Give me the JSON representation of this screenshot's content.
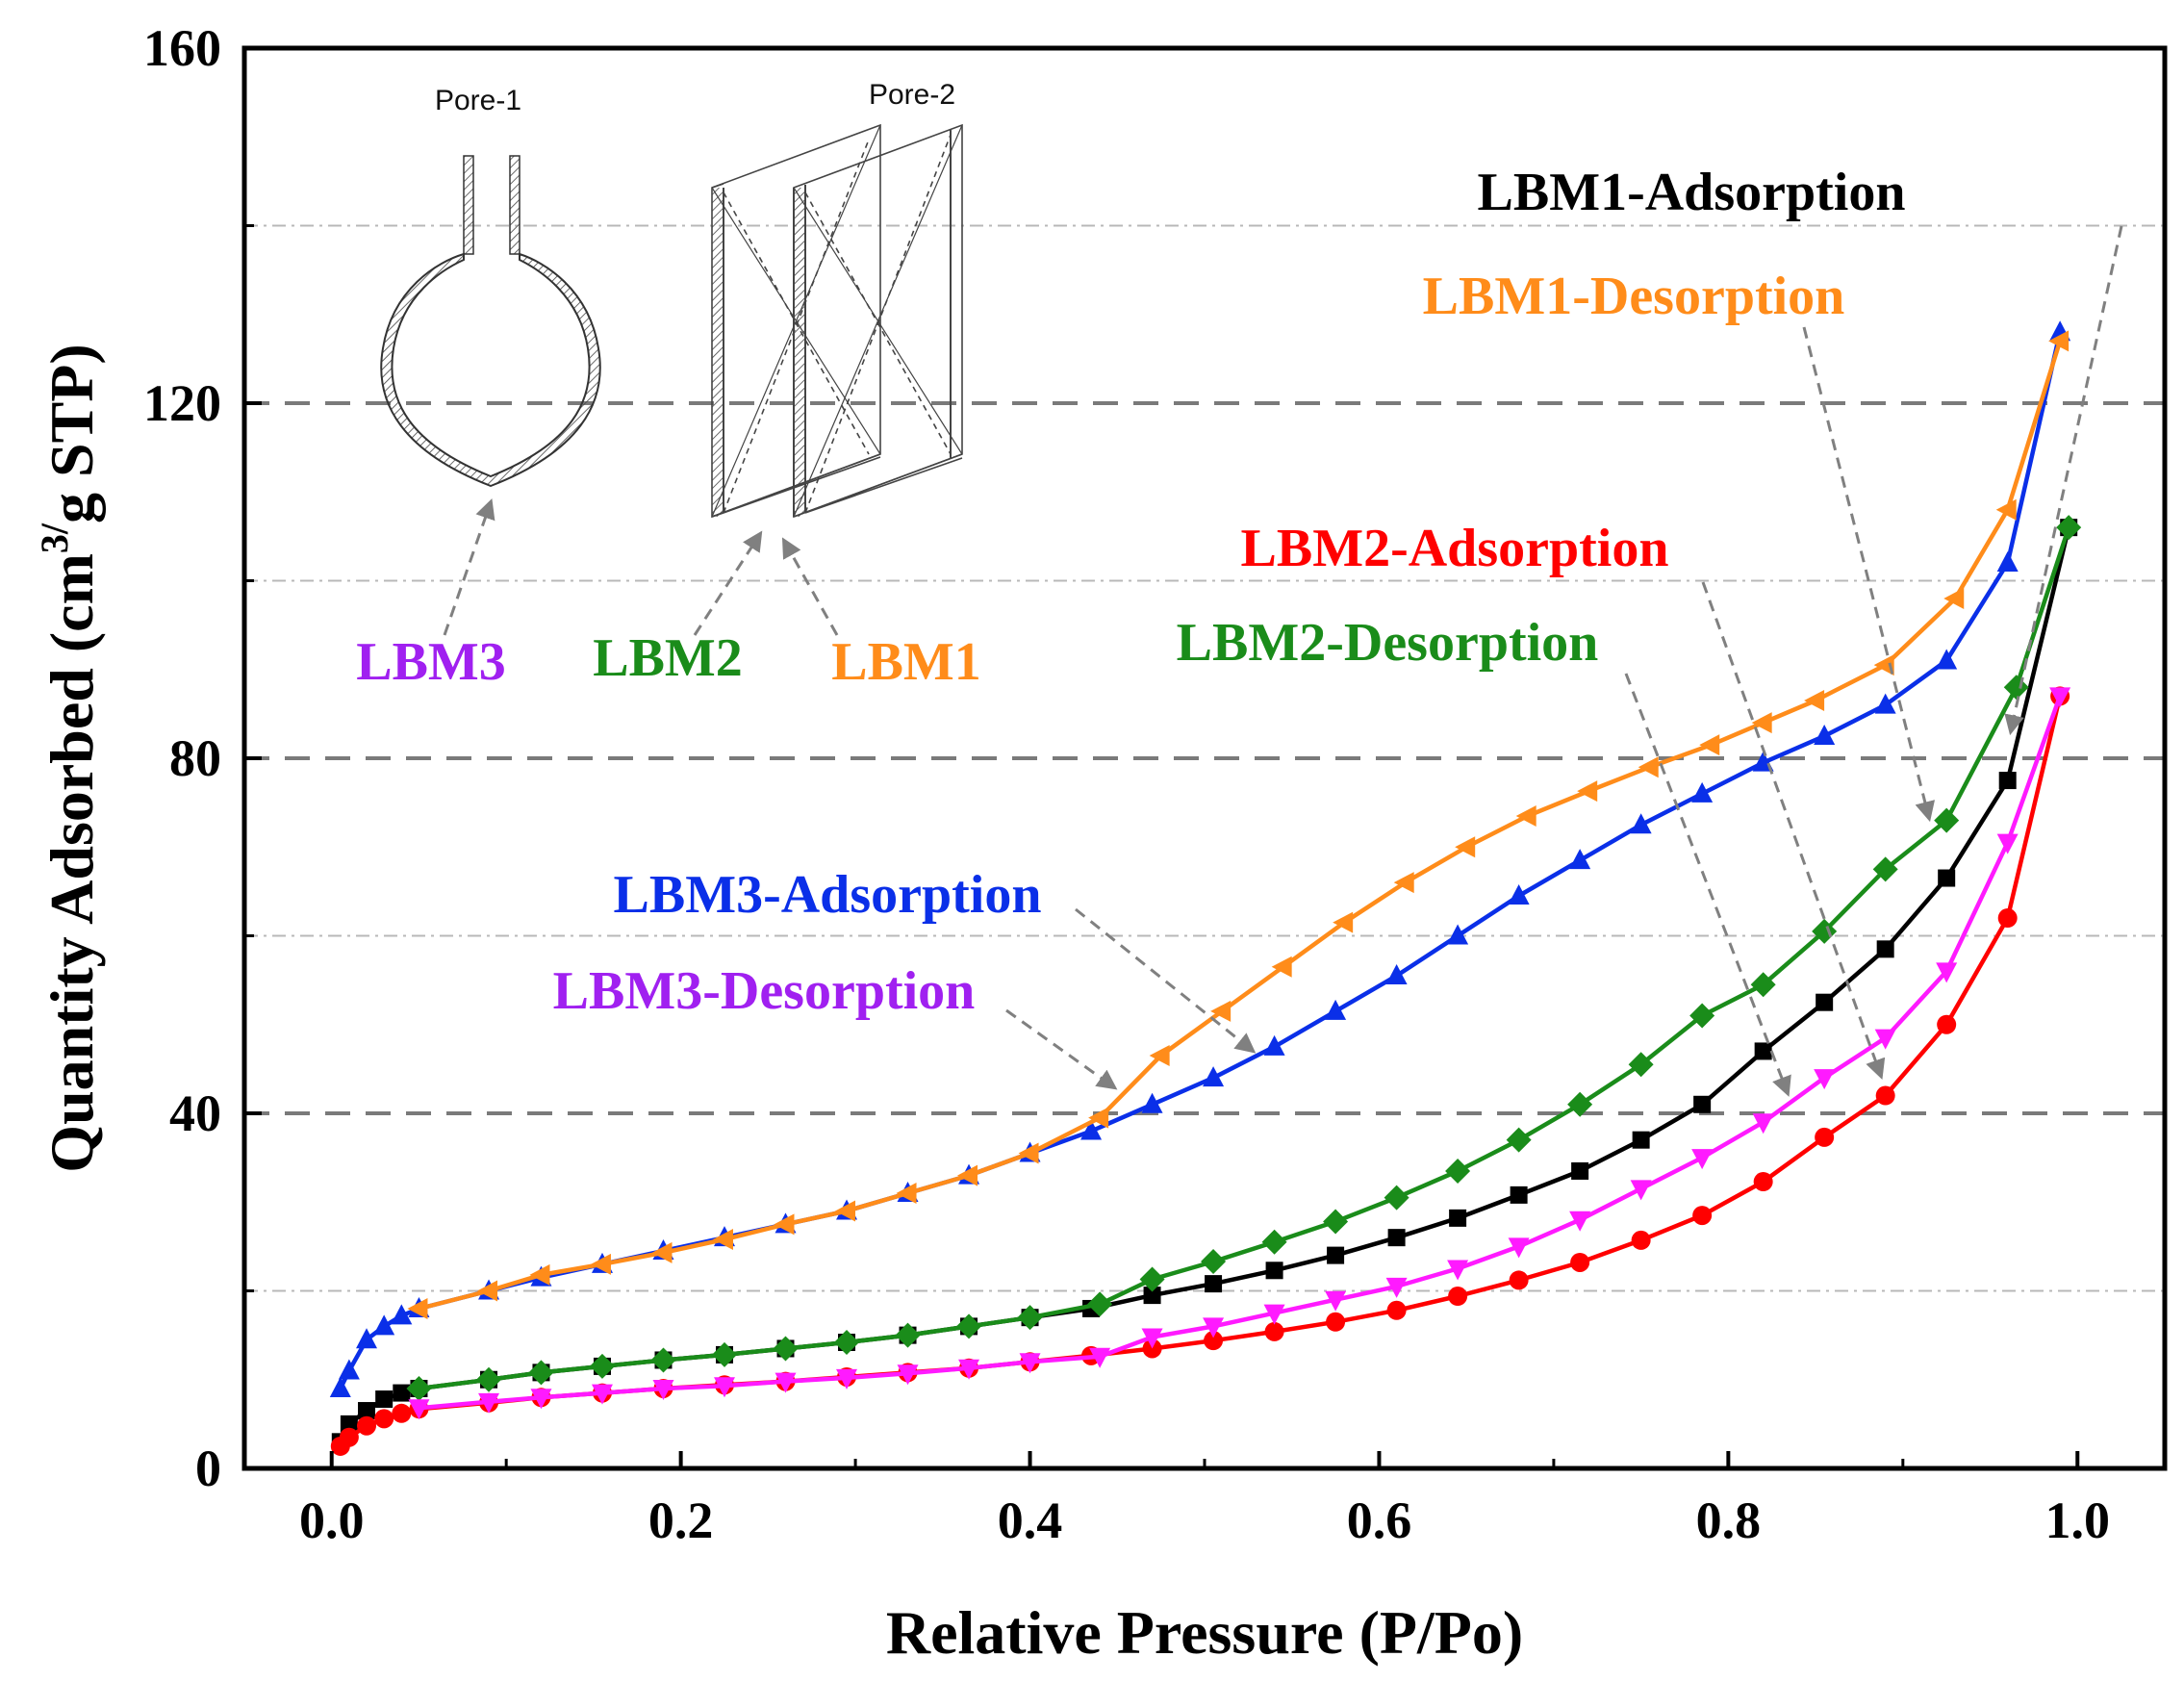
{
  "chart_data": {
    "type": "line",
    "title": "",
    "xlabel": "Relative Pressure (P/Po)",
    "ylabel_main": "Quantity Adsorbed (cm",
    "ylabel_sup": "3/",
    "ylabel_tail": "g STP)",
    "xlim": [
      -0.05,
      1.05
    ],
    "ylim": [
      0,
      160
    ],
    "x_ticks": [
      0.0,
      0.2,
      0.4,
      0.6,
      0.8,
      1.0
    ],
    "x_tick_labels": [
      "0.0",
      "0.2",
      "0.4",
      "0.6",
      "0.8",
      "1.0"
    ],
    "y_ticks": [
      0,
      40,
      80,
      120,
      160
    ],
    "y_tick_labels": [
      "0",
      "40",
      "80",
      "120",
      "160"
    ],
    "grid": "dashed at 40, 80, 120; dash-dot at 20, 60, 100, 140",
    "series": [
      {
        "name": "LBM1-Adsorption",
        "color": "#000000",
        "marker": "square",
        "x": [
          0.005,
          0.01,
          0.02,
          0.03,
          0.04,
          0.05,
          0.09,
          0.12,
          0.155,
          0.19,
          0.225,
          0.26,
          0.295,
          0.33,
          0.365,
          0.4,
          0.435,
          0.47,
          0.505,
          0.54,
          0.575,
          0.61,
          0.645,
          0.68,
          0.715,
          0.75,
          0.785,
          0.82,
          0.855,
          0.89,
          0.925,
          0.96,
          0.995
        ],
        "y": [
          3.0,
          5.0,
          6.5,
          7.8,
          8.5,
          9.0,
          10.0,
          10.8,
          11.5,
          12.2,
          12.8,
          13.5,
          14.2,
          15.0,
          16.0,
          17.0,
          18.0,
          19.5,
          20.8,
          22.3,
          24.0,
          26.0,
          28.2,
          30.8,
          33.5,
          37.0,
          41.0,
          47.0,
          52.5,
          58.5,
          66.5,
          77.5,
          106.0
        ]
      },
      {
        "name": "LBM1-Desorption",
        "color": "#ff8c1a",
        "marker": "triangle-left",
        "x": [
          0.99,
          0.96,
          0.93,
          0.89,
          0.85,
          0.82,
          0.79,
          0.755,
          0.72,
          0.685,
          0.65,
          0.615,
          0.58,
          0.545,
          0.51,
          0.475,
          0.44,
          0.4,
          0.365,
          0.33,
          0.295,
          0.26,
          0.225,
          0.19,
          0.155,
          0.12,
          0.09,
          0.05
        ],
        "y": [
          127.0,
          108.0,
          98.0,
          90.5,
          86.5,
          84.0,
          81.5,
          79.0,
          76.3,
          73.5,
          70.0,
          66.0,
          61.5,
          56.5,
          51.5,
          46.5,
          39.5,
          35.5,
          33.0,
          31.0,
          29.0,
          27.5,
          25.8,
          24.3,
          23.0,
          21.8,
          20.0,
          18.0
        ]
      },
      {
        "name": "LBM2-Adsorption",
        "color": "#ff0000",
        "marker": "circle",
        "x": [
          0.005,
          0.01,
          0.02,
          0.03,
          0.04,
          0.05,
          0.09,
          0.12,
          0.155,
          0.19,
          0.225,
          0.26,
          0.295,
          0.33,
          0.365,
          0.4,
          0.435,
          0.47,
          0.505,
          0.54,
          0.575,
          0.61,
          0.645,
          0.68,
          0.715,
          0.75,
          0.785,
          0.82,
          0.855,
          0.89,
          0.925,
          0.96,
          0.99
        ],
        "y": [
          2.5,
          3.5,
          4.8,
          5.6,
          6.2,
          6.7,
          7.4,
          8.0,
          8.5,
          9.0,
          9.4,
          9.8,
          10.3,
          10.8,
          11.3,
          12.0,
          12.7,
          13.5,
          14.4,
          15.4,
          16.5,
          17.8,
          19.4,
          21.2,
          23.2,
          25.7,
          28.5,
          32.3,
          37.3,
          42.0,
          50.0,
          62.0,
          87.0
        ]
      },
      {
        "name": "LBM2-Desorption",
        "color": "#1a8c1a",
        "marker": "diamond",
        "x": [
          0.995,
          0.965,
          0.925,
          0.89,
          0.855,
          0.82,
          0.785,
          0.75,
          0.715,
          0.68,
          0.645,
          0.61,
          0.575,
          0.54,
          0.505,
          0.47,
          0.44,
          0.4,
          0.365,
          0.33,
          0.295,
          0.26,
          0.225,
          0.19,
          0.155,
          0.12,
          0.09,
          0.05
        ],
        "y": [
          106.0,
          88.0,
          73.0,
          67.5,
          60.5,
          54.5,
          51.0,
          45.5,
          41.0,
          37.0,
          33.5,
          30.5,
          27.8,
          25.5,
          23.3,
          21.3,
          18.5,
          17.0,
          16.0,
          15.0,
          14.2,
          13.5,
          12.8,
          12.2,
          11.5,
          10.8,
          10.0,
          9.0
        ]
      },
      {
        "name": "LBM3-Adsorption",
        "color": "#0a2fe8",
        "marker": "triangle-up",
        "x": [
          0.005,
          0.01,
          0.02,
          0.03,
          0.04,
          0.05,
          0.09,
          0.12,
          0.155,
          0.19,
          0.225,
          0.26,
          0.295,
          0.33,
          0.365,
          0.4,
          0.435,
          0.47,
          0.505,
          0.54,
          0.575,
          0.61,
          0.645,
          0.68,
          0.715,
          0.75,
          0.785,
          0.82,
          0.855,
          0.89,
          0.925,
          0.96,
          0.99
        ],
        "y": [
          9.0,
          11.0,
          14.5,
          16.0,
          17.2,
          18.0,
          20.0,
          21.5,
          23.0,
          24.5,
          26.0,
          27.5,
          29.0,
          31.0,
          33.0,
          35.5,
          38.0,
          41.0,
          44.0,
          47.5,
          51.5,
          55.5,
          60.0,
          64.5,
          68.5,
          72.5,
          76.0,
          79.5,
          82.5,
          86.0,
          91.0,
          102.0,
          128.0
        ]
      },
      {
        "name": "LBM3-Desorption",
        "color": "#ff1aff",
        "marker": "triangle-down",
        "x": [
          0.99,
          0.96,
          0.925,
          0.89,
          0.855,
          0.82,
          0.785,
          0.75,
          0.715,
          0.68,
          0.645,
          0.61,
          0.575,
          0.54,
          0.505,
          0.47,
          0.44,
          0.4,
          0.365,
          0.33,
          0.295,
          0.26,
          0.225,
          0.19,
          0.155,
          0.12,
          0.09,
          0.05
        ],
        "y": [
          87.0,
          70.5,
          56.0,
          48.5,
          44.0,
          39.0,
          35.0,
          31.5,
          28.0,
          25.0,
          22.5,
          20.5,
          19.0,
          17.5,
          16.0,
          14.8,
          12.6,
          12.0,
          11.3,
          10.7,
          10.2,
          9.8,
          9.3,
          9.0,
          8.5,
          8.0,
          7.5,
          6.8
        ]
      }
    ],
    "annotations": [
      {
        "text": "LBM1-Adsorption",
        "color": "#000000"
      },
      {
        "text": "LBM1-Desorption",
        "color": "#ff8c1a"
      },
      {
        "text": "LBM2-Adsorption",
        "color": "#ff0000"
      },
      {
        "text": "LBM2-Desorption",
        "color": "#1a8c1a"
      },
      {
        "text": "LBM3-Adsorption",
        "color": "#0a2fe8"
      },
      {
        "text": "LBM3-Desorption",
        "color": "#a020f0"
      }
    ],
    "inset": {
      "pore1": "Pore-1",
      "pore2": "Pore-2",
      "lbm3": "LBM3",
      "lbm2": "LBM2",
      "lbm1": "LBM1",
      "lbm3_color": "#a020f0",
      "lbm2_color": "#1a8c1a",
      "lbm1_color": "#ff8c1a"
    }
  }
}
